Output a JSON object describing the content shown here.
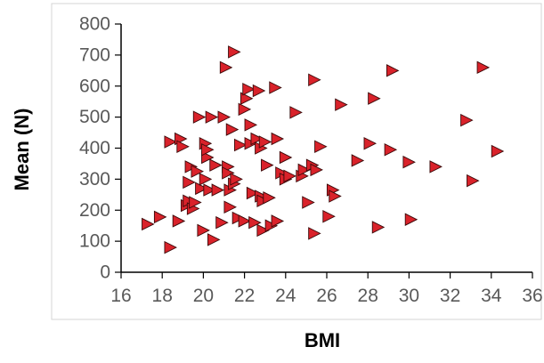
{
  "chart_data": {
    "type": "scatter",
    "title": "",
    "xlabel": "BMI",
    "ylabel": "Mean (N)",
    "xlim": [
      16,
      36
    ],
    "ylim": [
      0,
      800
    ],
    "x_ticks": [
      "16",
      "18",
      "20",
      "22",
      "24",
      "26",
      "28",
      "30",
      "32",
      "34",
      "36"
    ],
    "y_ticks": [
      "0",
      "100",
      "200",
      "300",
      "400",
      "500",
      "600",
      "700",
      "800"
    ],
    "grid": false,
    "legend": "none",
    "marker": "right-pointing-triangle",
    "colors": {
      "marker_fill": "#d9222a",
      "marker_stroke": "#3a0a0a",
      "axis": "#000000",
      "frame": "#d4d4d4",
      "tick_text": "#595959"
    },
    "series": [
      {
        "points": [
          [
            17.3,
            155
          ],
          [
            17.9,
            178
          ],
          [
            18.4,
            80
          ],
          [
            18.4,
            420
          ],
          [
            18.8,
            165
          ],
          [
            18.9,
            430
          ],
          [
            19.0,
            405
          ],
          [
            19.2,
            215
          ],
          [
            19.3,
            230
          ],
          [
            19.3,
            290
          ],
          [
            19.4,
            340
          ],
          [
            19.5,
            205
          ],
          [
            19.6,
            225
          ],
          [
            19.7,
            325
          ],
          [
            19.8,
            500
          ],
          [
            19.9,
            270
          ],
          [
            20.0,
            135
          ],
          [
            20.1,
            300
          ],
          [
            20.1,
            415
          ],
          [
            20.2,
            370
          ],
          [
            20.2,
            395
          ],
          [
            20.3,
            265
          ],
          [
            20.4,
            500
          ],
          [
            20.5,
            105
          ],
          [
            20.6,
            345
          ],
          [
            20.7,
            265
          ],
          [
            20.9,
            160
          ],
          [
            21.0,
            500
          ],
          [
            21.1,
            660
          ],
          [
            21.2,
            340
          ],
          [
            21.2,
            320
          ],
          [
            21.3,
            210
          ],
          [
            21.3,
            265
          ],
          [
            21.4,
            460
          ],
          [
            21.5,
            285
          ],
          [
            21.5,
            710
          ],
          [
            21.6,
            300
          ],
          [
            21.7,
            175
          ],
          [
            21.8,
            410
          ],
          [
            22.0,
            165
          ],
          [
            22.0,
            525
          ],
          [
            22.1,
            560
          ],
          [
            22.2,
            590
          ],
          [
            22.3,
            475
          ],
          [
            22.3,
            415
          ],
          [
            22.4,
            255
          ],
          [
            22.5,
            160
          ],
          [
            22.6,
            430
          ],
          [
            22.7,
            585
          ],
          [
            22.8,
            400
          ],
          [
            22.8,
            245
          ],
          [
            22.9,
            135
          ],
          [
            22.9,
            230
          ],
          [
            23.0,
            420
          ],
          [
            23.1,
            345
          ],
          [
            23.2,
            240
          ],
          [
            23.3,
            150
          ],
          [
            23.5,
            595
          ],
          [
            23.6,
            430
          ],
          [
            23.6,
            165
          ],
          [
            23.8,
            320
          ],
          [
            24.0,
            370
          ],
          [
            24.0,
            300
          ],
          [
            24.2,
            310
          ],
          [
            24.5,
            515
          ],
          [
            24.8,
            310
          ],
          [
            24.9,
            330
          ],
          [
            25.1,
            225
          ],
          [
            25.3,
            345
          ],
          [
            25.4,
            125
          ],
          [
            25.4,
            620
          ],
          [
            25.5,
            330
          ],
          [
            25.7,
            405
          ],
          [
            26.1,
            180
          ],
          [
            26.3,
            265
          ],
          [
            26.4,
            245
          ],
          [
            26.7,
            540
          ],
          [
            27.5,
            360
          ],
          [
            28.1,
            415
          ],
          [
            28.3,
            560
          ],
          [
            28.5,
            145
          ],
          [
            29.1,
            395
          ],
          [
            29.2,
            650
          ],
          [
            30.0,
            355
          ],
          [
            30.1,
            170
          ],
          [
            31.3,
            340
          ],
          [
            32.8,
            490
          ],
          [
            33.1,
            295
          ],
          [
            33.6,
            660
          ],
          [
            34.3,
            390
          ]
        ]
      }
    ]
  }
}
